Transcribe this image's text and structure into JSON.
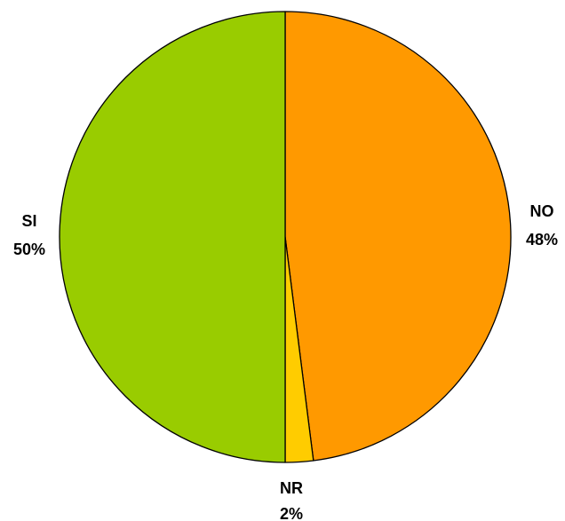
{
  "chart_data": {
    "type": "pie",
    "categories": [
      "NO",
      "NR",
      "SI"
    ],
    "values": [
      48,
      2,
      50
    ],
    "value_labels": [
      "48%",
      "2%",
      "50%"
    ],
    "colors": [
      "#FF9900",
      "#FFCC00",
      "#99CC00"
    ],
    "start_angle_deg": 0,
    "direction": "clockwise",
    "legend": "none",
    "slice_edge_color": "#000000"
  }
}
